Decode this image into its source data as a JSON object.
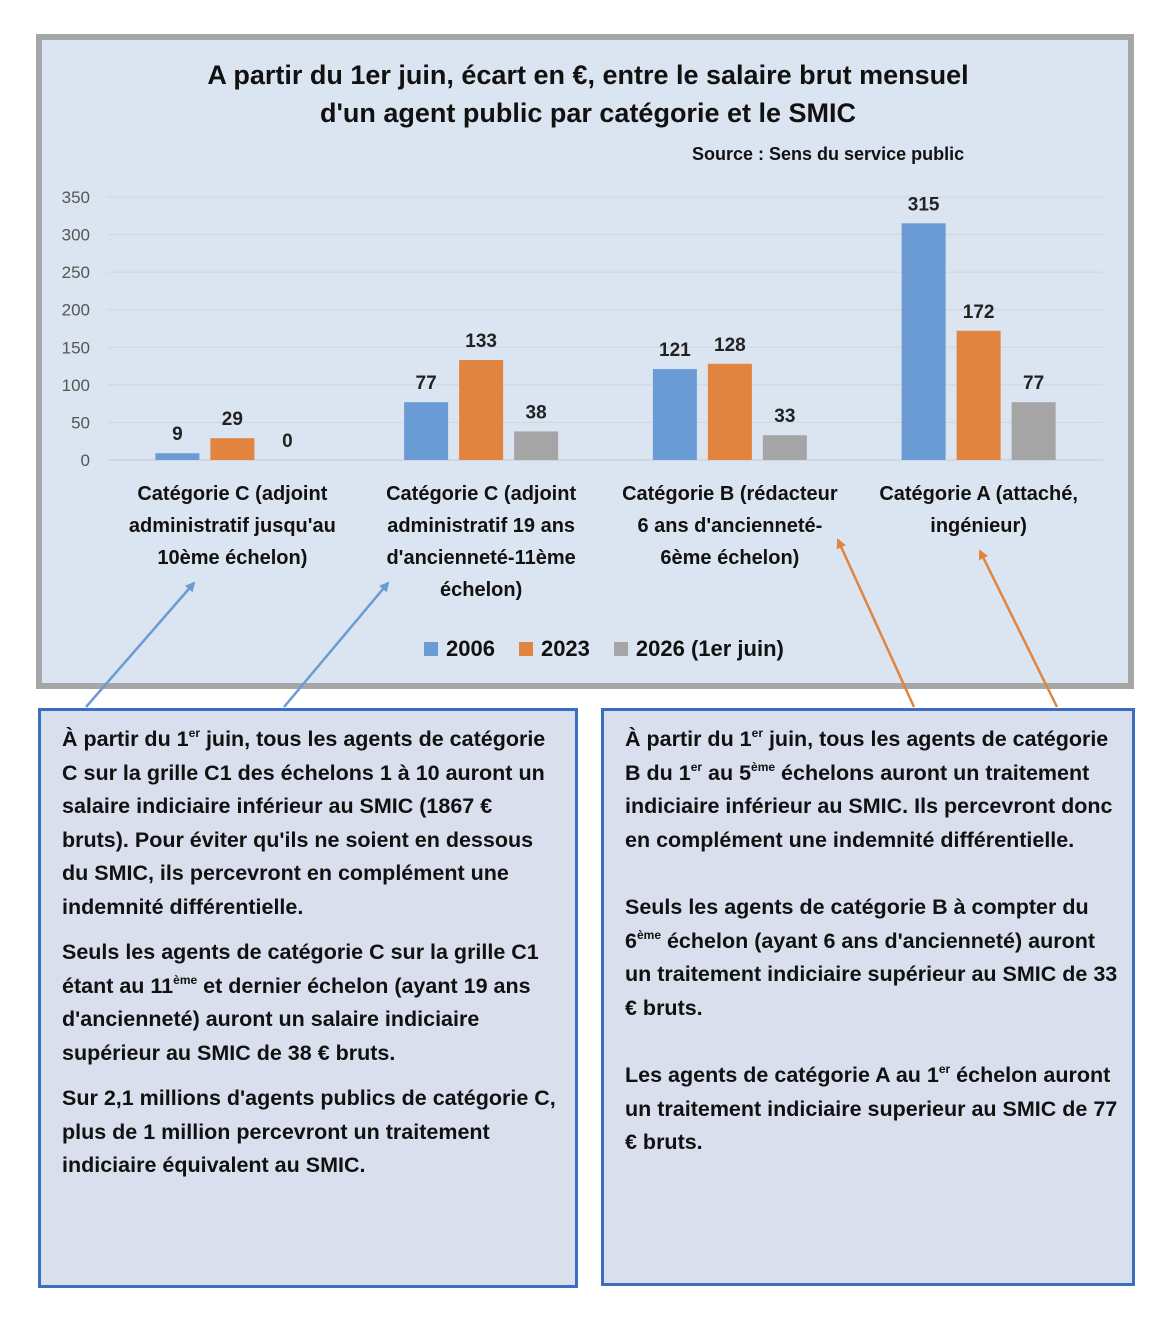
{
  "chart_data": {
    "type": "bar",
    "title_lines": [
      "A partir du 1er juin, écart en €, entre le salaire brut mensuel",
      "d'un agent public par catégorie et le SMIC"
    ],
    "source": "Source : Sens du service public",
    "categories": [
      "Catégorie C (adjoint administratif jusqu'au 10ème échelon)",
      "Catégorie C (adjoint administratif 19 ans d'ancienneté-11ème échelon)",
      "Catégorie B (rédacteur 6 ans d'ancienneté-6ème échelon)",
      "Catégorie A (attaché, ingénieur)"
    ],
    "category_label_lines": [
      [
        "Catégorie C (adjoint",
        "administratif jusqu'au",
        "10ème échelon)"
      ],
      [
        "Catégorie C (adjoint",
        "administratif 19 ans",
        "d'ancienneté-11ème",
        "échelon)"
      ],
      [
        "Catégorie B (rédacteur",
        "6 ans d'ancienneté-",
        "6ème échelon)"
      ],
      [
        "Catégorie A (attaché,",
        "ingénieur)"
      ]
    ],
    "series": [
      {
        "name": "2006",
        "color": "#6a9bd4",
        "values": [
          9,
          77,
          121,
          315
        ]
      },
      {
        "name": "2023",
        "color": "#e0843f",
        "values": [
          29,
          133,
          128,
          172
        ]
      },
      {
        "name": "2026 (1er juin)",
        "color": "#a5a5a5",
        "values": [
          0,
          38,
          33,
          77
        ]
      }
    ],
    "ylim": [
      0,
      350
    ],
    "yticks": [
      0,
      50,
      100,
      150,
      200,
      250,
      300,
      350
    ],
    "grid": true,
    "legend_position": "bottom"
  },
  "box_left": {
    "paragraphs": [
      [
        {
          "t": "À partir du 1"
        },
        {
          "t": "er",
          "sup": true
        },
        {
          "t": " juin, tous les agents de catégorie C sur la grille C1 des échelons 1 à 10 auront un salaire indiciaire inférieur au SMIC (1867 € bruts). Pour éviter qu'ils ne soient en dessous du SMIC, ils percevront en complément une indemnité différentielle."
        }
      ],
      [
        {
          "t": "Seuls les agents de catégorie C sur la grille C1 étant au 11"
        },
        {
          "t": "ème",
          "sup": true
        },
        {
          "t": " et dernier échelon (ayant 19 ans d'ancienneté) auront un salaire indiciaire supérieur au SMIC de 38 € bruts."
        }
      ],
      [
        {
          "t": "Sur 2,1 millions d'agents publics de catégorie C, plus de 1 million percevront un traitement indiciaire équivalent au SMIC."
        }
      ]
    ]
  },
  "box_right": {
    "paragraphs": [
      [
        {
          "t": "À partir du 1"
        },
        {
          "t": "er",
          "sup": true
        },
        {
          "t": " juin, tous les agents de catégorie B du 1"
        },
        {
          "t": "er",
          "sup": true
        },
        {
          "t": " au 5"
        },
        {
          "t": "ème",
          "sup": true
        },
        {
          "t": " échelons auront un traitement indiciaire inférieur au SMIC. Ils percevront donc en complément une indemnité différentielle."
        }
      ],
      [
        {
          "t": "Seuls les agents de catégorie B à compter du 6"
        },
        {
          "t": "ème",
          "sup": true
        },
        {
          "t": " échelon (ayant 6 ans d'ancienneté) auront un traitement indiciaire supérieur au SMIC de 33 € bruts."
        }
      ],
      [
        {
          "t": "Les agents de catégorie A au 1"
        },
        {
          "t": "er",
          "sup": true
        },
        {
          "t": " échelon auront un traitement indiciaire superieur au SMIC de 77 € bruts."
        }
      ]
    ]
  },
  "arrow_colors": {
    "left": "#6a9bd4",
    "right": "#e0843f"
  }
}
